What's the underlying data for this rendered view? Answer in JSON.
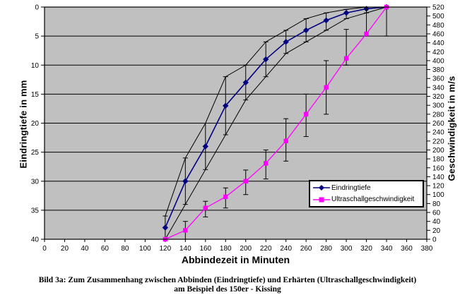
{
  "figure": {
    "caption_line1": "Bild 3a: Zum Zusammenhang zwischen Abbinden (Eindringtiefe) und Erhärten (Ultraschallgeschwindigkeit)",
    "caption_line2": "am Beispiel des 150er - Kissing"
  },
  "chart_data": {
    "type": "line",
    "title": "",
    "xlabel": "Abbindezeit in Minuten",
    "ylabel_left": "Eindringtiefe in mm",
    "ylabel_right": "Geschwindigkeit in m/s",
    "xlim": [
      0,
      380
    ],
    "x_tick_step": 20,
    "ylim_left": [
      0,
      40
    ],
    "left_axis_inverted": true,
    "left_tick_step": 5,
    "ylim_right": [
      0,
      520
    ],
    "right_tick_step": 20,
    "grid": "horizontal-only",
    "plot_bg": "#c0c0c0",
    "axis_color": "#000000",
    "legend_position": "inside-right",
    "series": [
      {
        "name": "Eindringtiefe",
        "axis": "left",
        "color": "#000080",
        "marker": "diamond",
        "error_bar_color": "#000000",
        "envelope_lines": true,
        "x": [
          120,
          140,
          160,
          180,
          200,
          220,
          240,
          260,
          280,
          300,
          320,
          340
        ],
        "y": [
          38,
          30,
          24,
          17,
          13,
          9,
          6,
          4,
          2.3,
          1,
          0.3,
          0
        ],
        "err_min": [
          36,
          26,
          20,
          12,
          10,
          6,
          4,
          2,
          1,
          0.4,
          0,
          0
        ],
        "err_max": [
          40,
          34,
          28,
          22,
          16,
          12,
          8,
          6,
          4,
          2,
          1,
          0
        ]
      },
      {
        "name": "Ultraschallgeschwindigkeit",
        "axis": "right",
        "color": "#ff00ff",
        "marker": "square",
        "error_bar_color": "#000000",
        "envelope_lines": false,
        "x": [
          120,
          140,
          160,
          180,
          200,
          220,
          240,
          260,
          280,
          300,
          320,
          340
        ],
        "y": [
          0,
          20,
          70,
          95,
          130,
          170,
          220,
          280,
          340,
          405,
          460,
          520
        ],
        "err_min": [
          0,
          0,
          50,
          70,
          100,
          135,
          175,
          230,
          280,
          390,
          455,
          455
        ],
        "err_max": [
          0,
          40,
          85,
          115,
          155,
          200,
          270,
          325,
          400,
          470,
          520,
          520
        ]
      }
    ]
  }
}
